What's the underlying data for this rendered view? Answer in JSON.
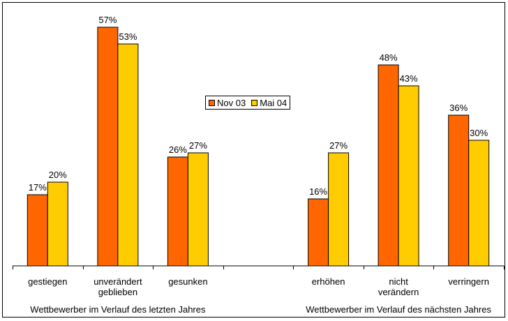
{
  "chart_data": {
    "type": "bar",
    "groups": [
      {
        "label": "Wettbewerber im Verlauf des letzten Jahres",
        "categories": [
          "gestiegen",
          "unverändert\ngeblieben",
          "gesunken"
        ]
      },
      {
        "label": "Wettbewerber im Verlauf des nächsten Jahres",
        "categories": [
          "erhöhen",
          "nicht\nverändern",
          "verringern"
        ]
      }
    ],
    "categories": [
      "gestiegen",
      "unverändert\ngeblieben",
      "gesunken",
      "",
      "erhöhen",
      "nicht\nverändern",
      "verringern"
    ],
    "series": [
      {
        "name": "Nov 03",
        "color": "#FF6600",
        "values": [
          17,
          57,
          26,
          null,
          16,
          48,
          36
        ]
      },
      {
        "name": "Mai 04",
        "color": "#FFCC00",
        "values": [
          20,
          53,
          27,
          null,
          27,
          43,
          30
        ]
      }
    ],
    "value_suffix": "%",
    "ylim": [
      0,
      60
    ],
    "grid": false,
    "legend_position": "top-center",
    "title": "",
    "xlabel": "",
    "ylabel": ""
  }
}
